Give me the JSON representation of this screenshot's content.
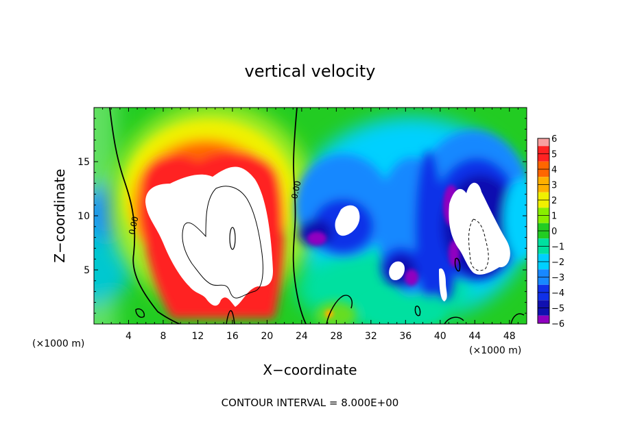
{
  "chart_data": {
    "type": "heatmap",
    "title": "vertical velocity",
    "xlabel": "X−coordinate",
    "ylabel": "Z−coordinate",
    "x_unit_label": "(×1000 m)",
    "y_unit_label": "(×1000 m)",
    "xlim": [
      0,
      50
    ],
    "ylim": [
      0,
      20
    ],
    "x_ticks": [
      4,
      8,
      12,
      16,
      20,
      24,
      28,
      32,
      36,
      40,
      44,
      48
    ],
    "y_ticks": [
      5,
      10,
      15
    ],
    "contour_interval_text": "CONTOUR INTERVAL = 8.000E+00",
    "contour_labels": [
      "0.00",
      "0.00"
    ],
    "colorbar": {
      "ticks": [
        "6",
        "5",
        "4",
        "3",
        "2",
        "1",
        "0",
        "−1",
        "−2",
        "−3",
        "−4",
        "−5",
        "−6"
      ],
      "range": [
        -6,
        6
      ],
      "colors_top_to_bottom": [
        "#f7a0a0",
        "#ff2222",
        "#ff6600",
        "#ffb000",
        "#f0f000",
        "#88ee00",
        "#22cc22",
        "#00e0a0",
        "#00d0ff",
        "#1888ff",
        "#1030e8",
        "#1010b0",
        "#9000c0"
      ]
    },
    "features": [
      {
        "kind": "updraft",
        "x": 14,
        "z": 9,
        "w_max": 6
      },
      {
        "kind": "downdraft",
        "x": 30,
        "z": 9,
        "w_min": -6
      },
      {
        "kind": "downdraft",
        "x": 44,
        "z": 8.5,
        "w_min": -6
      },
      {
        "kind": "downdraft",
        "x": 35,
        "z": 5,
        "w_min": -6
      },
      {
        "kind": "downdraft",
        "x": 40,
        "z": 3,
        "w_min": -6
      }
    ]
  }
}
